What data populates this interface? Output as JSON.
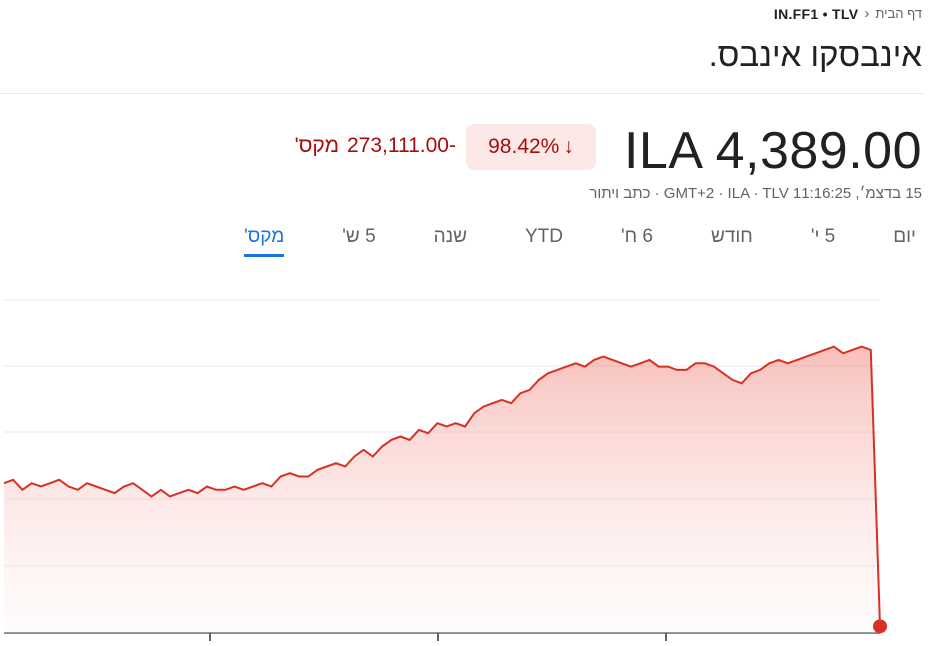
{
  "breadcrumb": {
    "home": "דף הבית",
    "ticker": "IN.FF1 • TLV"
  },
  "title": "אינבסקו אינבס.",
  "price": "ILA 4,389.00",
  "change": {
    "percent": "98.42%",
    "absolute": "-273,111.00",
    "period": "מקס'"
  },
  "meta": "15 בדצמ׳, 11:16:25 GMT+2 · ILA · TLV · כתב ויתור",
  "tabs": [
    "יום",
    "5 י'",
    "חודש",
    "6 ח'",
    "YTD",
    "שנה",
    "5 ש'",
    "מקס'"
  ],
  "active_tab": "מקס'",
  "colors": {
    "down": "#a50e0e",
    "line": "#d93025",
    "accent": "#1a73e8"
  },
  "chart_data": {
    "type": "area",
    "direction": "down",
    "gridlines": true,
    "values": [
      0.45,
      0.46,
      0.43,
      0.45,
      0.44,
      0.45,
      0.46,
      0.44,
      0.43,
      0.45,
      0.44,
      0.43,
      0.42,
      0.44,
      0.45,
      0.43,
      0.41,
      0.43,
      0.41,
      0.42,
      0.43,
      0.42,
      0.44,
      0.43,
      0.43,
      0.44,
      0.43,
      0.44,
      0.45,
      0.44,
      0.47,
      0.48,
      0.47,
      0.47,
      0.49,
      0.5,
      0.51,
      0.5,
      0.53,
      0.55,
      0.53,
      0.56,
      0.58,
      0.59,
      0.58,
      0.61,
      0.6,
      0.63,
      0.62,
      0.63,
      0.62,
      0.66,
      0.68,
      0.69,
      0.7,
      0.69,
      0.72,
      0.73,
      0.76,
      0.78,
      0.79,
      0.8,
      0.81,
      0.8,
      0.82,
      0.83,
      0.82,
      0.81,
      0.8,
      0.81,
      0.82,
      0.8,
      0.8,
      0.79,
      0.79,
      0.81,
      0.81,
      0.8,
      0.78,
      0.76,
      0.75,
      0.78,
      0.79,
      0.81,
      0.82,
      0.81,
      0.82,
      0.83,
      0.84,
      0.85,
      0.86,
      0.84,
      0.85,
      0.86,
      0.85,
      0.02
    ]
  }
}
